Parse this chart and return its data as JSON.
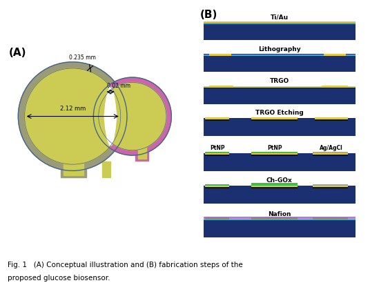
{
  "fig_width": 5.36,
  "fig_height": 4.26,
  "dpi": 100,
  "bg_color": "#ffffff",
  "label_A": "(A)",
  "label_B": "(B)",
  "caption_line1": "Fig. 1   (A) Conceptual illustration and (B) fabrication steps of the",
  "caption_line2": "proposed glucose biosensor.",
  "dim_labels": [
    "0.235 mm",
    "0.02 mm",
    "2.12 mm"
  ],
  "colors": {
    "olive_gray": "#9B9B7A",
    "yellow_green": "#CCCC55",
    "magenta": "#CC66AA",
    "dark_blue": "#1a3070",
    "cyan_thin": "#44aacc",
    "gold": "#E8C840",
    "black": "#111111",
    "green": "#44bb44",
    "gray_silver": "#aaa880",
    "lavender": "#bb88cc",
    "taupe": "#998866",
    "light_gray": "#ccccbb",
    "white": "#ffffff",
    "blue_outline": "#446688"
  }
}
